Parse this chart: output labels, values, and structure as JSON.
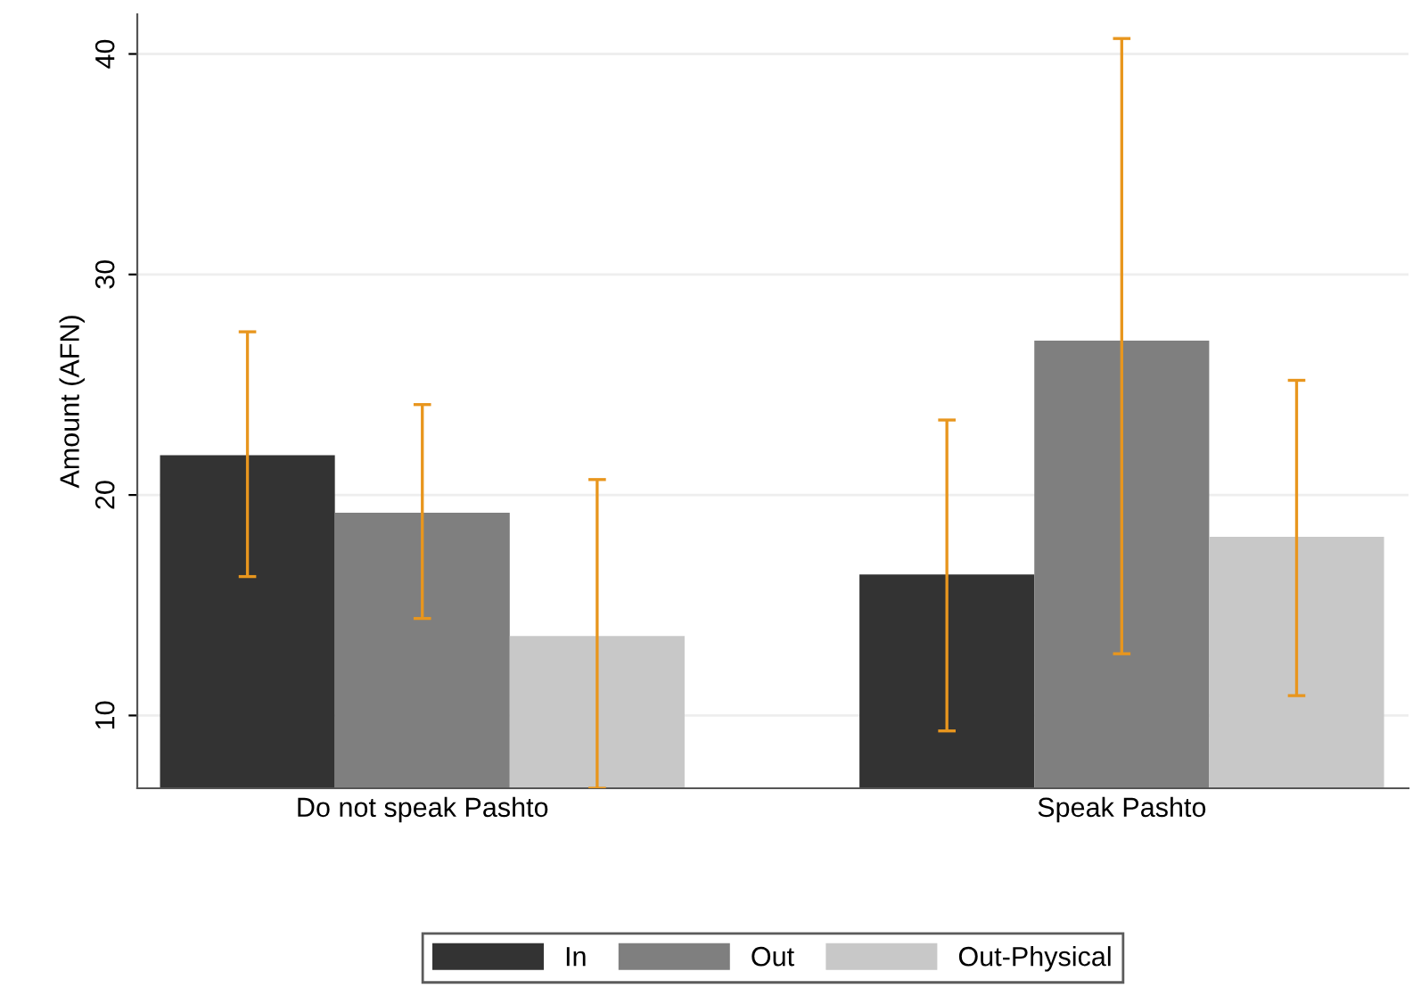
{
  "chart_data": {
    "type": "bar",
    "ylabel": "Amount (AFN)",
    "categories": [
      "Do not speak Pashto",
      "Speak Pashto"
    ],
    "series": [
      {
        "name": "In",
        "color": "#333333",
        "values": [
          21.8,
          16.4
        ],
        "errors": [
          [
            16.3,
            27.4
          ],
          [
            9.3,
            23.4
          ]
        ]
      },
      {
        "name": "Out",
        "color": "#7f7f7f",
        "values": [
          19.2,
          27.0
        ],
        "errors": [
          [
            14.4,
            24.1
          ],
          [
            12.8,
            40.7
          ]
        ]
      },
      {
        "name": "Out-Physical",
        "color": "#c8c8c8",
        "values": [
          13.6,
          18.1
        ],
        "errors": [
          [
            6.7,
            20.7
          ],
          [
            10.9,
            25.2
          ]
        ]
      }
    ],
    "ylim": [
      6.7,
      41.8
    ],
    "yticks": [
      10,
      20,
      30,
      40
    ],
    "grid": "y",
    "legend": "bottom"
  }
}
